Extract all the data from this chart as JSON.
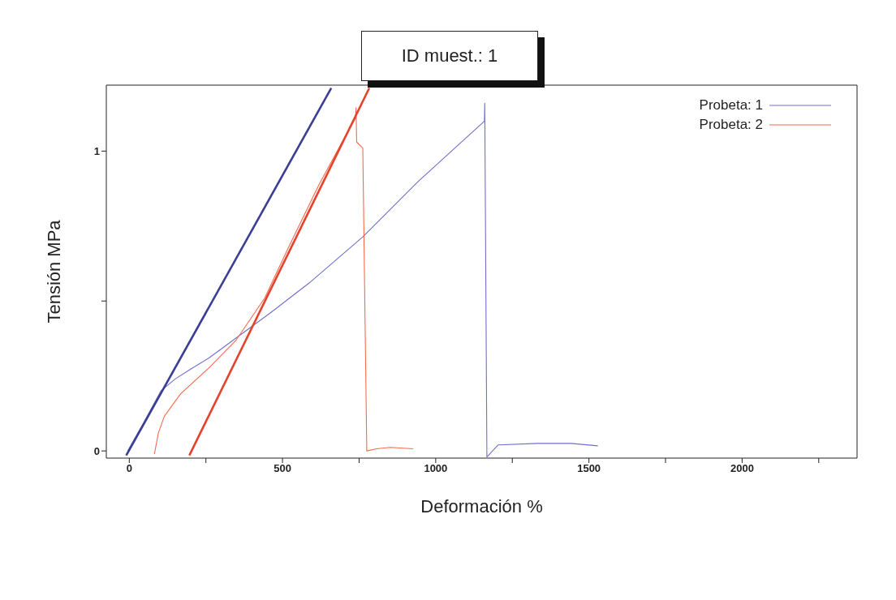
{
  "chart_data": {
    "type": "line",
    "title": "ID muest.: 1",
    "xlabel": "Deformación %",
    "ylabel": "Tensión MPa",
    "xlim": [
      -75,
      2375
    ],
    "ylim": [
      -0.024,
      1.22
    ],
    "xticks": [
      0,
      {
        "value": 250,
        "label": null
      },
      500,
      {
        "value": 750,
        "label": null
      },
      1000,
      {
        "value": 1250,
        "label": null
      },
      1500,
      {
        "value": 1750,
        "label": null
      },
      2000,
      {
        "value": 2250,
        "label": null
      }
    ],
    "yticks": [
      0,
      {
        "value": 0.5,
        "label": null
      },
      1
    ],
    "grid": false,
    "legend": "top right",
    "series": [
      {
        "name": "Probeta: 1",
        "color": "#6f6fd0",
        "x": [
          -5,
          50,
          103,
          150,
          196,
          260,
          349,
          460,
          587,
          762,
          944,
          1159,
          1160,
          1167,
          1204,
          1331,
          1442,
          1529
        ],
        "values": [
          0,
          0.1,
          0.2,
          0.24,
          0.27,
          0.31,
          0.377,
          0.46,
          0.56,
          0.714,
          0.9,
          1.1,
          1.16,
          -0.02,
          0.02,
          0.025,
          0.025,
          0.017
        ]
      },
      {
        "name": "Probeta: 2",
        "color": "#f46a4e",
        "x": [
          82,
          95,
          114,
          167,
          259,
          349,
          442,
          520,
          620,
          700,
          738,
          740,
          742,
          762,
          775,
          807,
          852,
          926
        ],
        "values": [
          -0.01,
          0.06,
          0.115,
          0.19,
          0.276,
          0.37,
          0.51,
          0.68,
          0.89,
          1.04,
          1.11,
          1.145,
          1.03,
          1.01,
          0,
          0.007,
          0.012,
          0.007
        ]
      },
      {
        "color": "#3b3f93",
        "x": [
          -10,
          659
        ],
        "values": [
          -0.015,
          1.21
        ]
      },
      {
        "color": "#e4432b",
        "x": [
          196,
          783
        ],
        "values": [
          -0.015,
          1.21
        ]
      }
    ]
  }
}
